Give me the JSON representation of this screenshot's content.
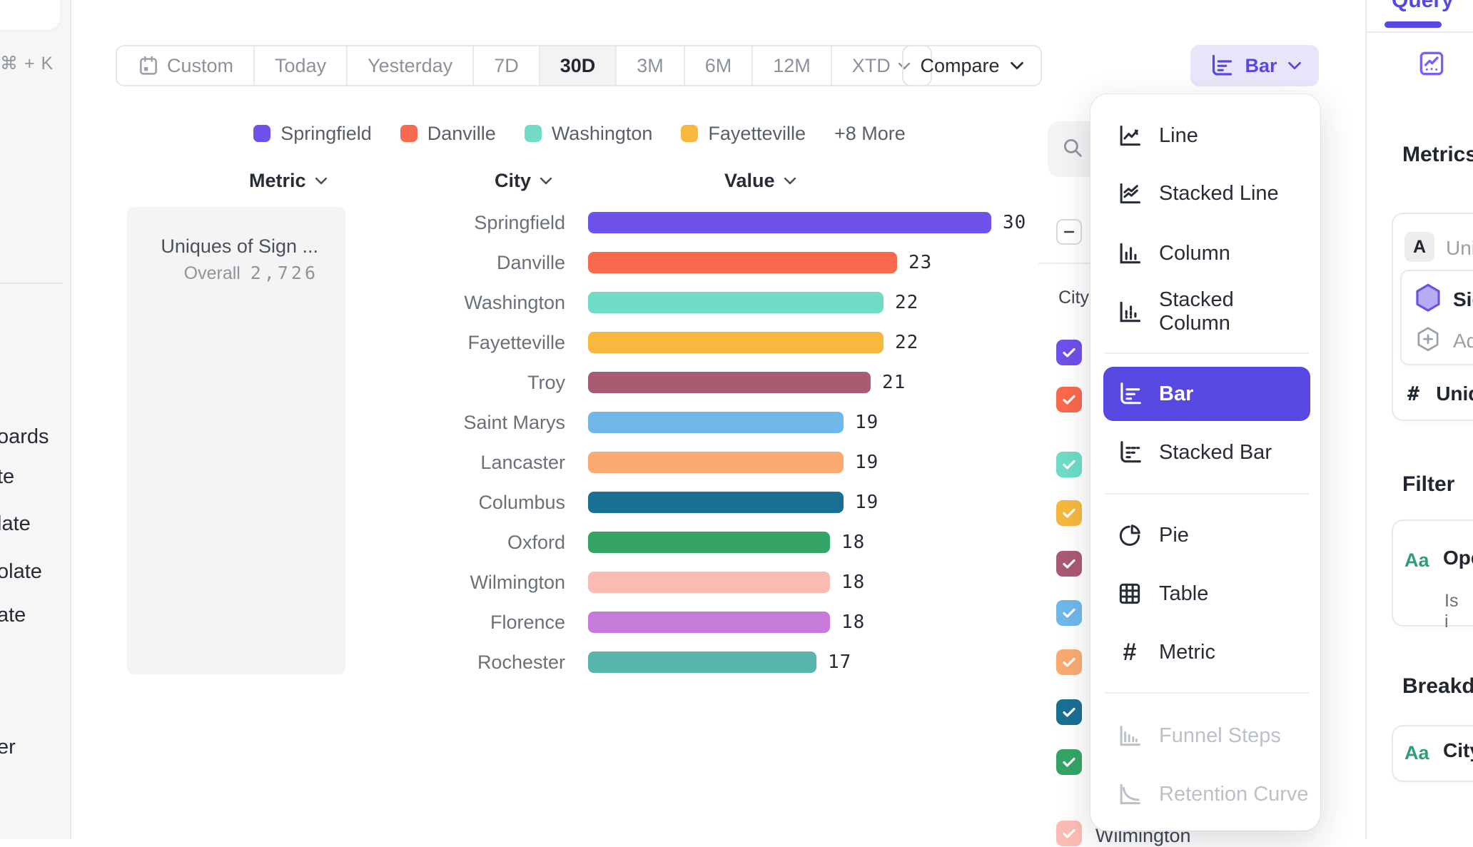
{
  "accent_color": "#5848e2",
  "sidebar": {
    "shortcut": "⌘ + K",
    "item_fragments": [
      "oards",
      "te",
      "late",
      "olate",
      "ate",
      "er"
    ]
  },
  "toolbar": {
    "date_ranges": [
      {
        "label": "Custom",
        "icon": "calendar-icon",
        "selected": false
      },
      {
        "label": "Today",
        "selected": false
      },
      {
        "label": "Yesterday",
        "selected": false
      },
      {
        "label": "7D",
        "selected": false
      },
      {
        "label": "30D",
        "selected": true
      },
      {
        "label": "3M",
        "selected": false
      },
      {
        "label": "6M",
        "selected": false
      },
      {
        "label": "12M",
        "selected": false
      },
      {
        "label": "XTD",
        "chevron": true,
        "selected": false
      }
    ],
    "compare_label": "Compare",
    "chart_type_button_label": "Bar"
  },
  "legend": {
    "items": [
      {
        "label": "Springfield",
        "color": "#6e51e8"
      },
      {
        "label": "Danville",
        "color": "#f9694d"
      },
      {
        "label": "Washington",
        "color": "#70dcc8"
      },
      {
        "label": "Fayetteville",
        "color": "#f6b93e"
      }
    ],
    "more_label": "+8 More"
  },
  "table_headers": {
    "metric": "Metric",
    "city": "City",
    "value": "Value"
  },
  "metric_card": {
    "title": "Uniques of Sign ...",
    "overall_label": "Overall",
    "overall_value": "2,726"
  },
  "chart_data": {
    "type": "bar",
    "orientation": "horizontal",
    "title": "Uniques of Sign ...",
    "overall_total": 2726,
    "categories": [
      "Springfield",
      "Danville",
      "Washington",
      "Fayetteville",
      "Troy",
      "Saint Marys",
      "Lancaster",
      "Columbus",
      "Oxford",
      "Wilmington",
      "Florence",
      "Rochester"
    ],
    "values": [
      30,
      23,
      22,
      22,
      21,
      19,
      19,
      19,
      18,
      18,
      18,
      17
    ],
    "colors": [
      "#6e51e8",
      "#f9694d",
      "#70dcc8",
      "#f6b93e",
      "#aa5a71",
      "#70b8ea",
      "#fbab71",
      "#1a7093",
      "#34a567",
      "#fbbcb4",
      "#c77bda",
      "#57b5ab"
    ],
    "xlim": [
      0,
      30
    ],
    "value_labels_shown": true,
    "grid": false
  },
  "chart_type_menu": {
    "items": [
      {
        "label": "Line",
        "icon": "line-chart-icon"
      },
      {
        "label": "Stacked Line",
        "icon": "stacked-line-chart-icon"
      },
      {
        "label": "Column",
        "icon": "column-chart-icon"
      },
      {
        "label": "Stacked Column",
        "icon": "stacked-column-chart-icon"
      },
      {
        "divider": true
      },
      {
        "label": "Bar",
        "icon": "bar-chart-icon",
        "selected": true
      },
      {
        "label": "Stacked Bar",
        "icon": "stacked-bar-chart-icon"
      },
      {
        "divider": true
      },
      {
        "label": "Pie",
        "icon": "pie-chart-icon"
      },
      {
        "label": "Table",
        "icon": "table-icon"
      },
      {
        "label": "Metric",
        "icon": "hash-icon"
      },
      {
        "divider": true
      },
      {
        "label": "Funnel Steps",
        "icon": "funnel-steps-icon",
        "disabled": true
      },
      {
        "label": "Retention Curve",
        "icon": "retention-curve-icon",
        "disabled": true
      }
    ]
  },
  "breakdown_list": {
    "group_label": "City",
    "checkbox_colors": [
      "#6e51e8",
      "#f9694d",
      "#70dcc8",
      "#f6b93e",
      "#aa5a71",
      "#70b8ea",
      "#fbab71",
      "#1a7093",
      "#34a567",
      "#fbbcb4"
    ],
    "partial_row_label": "Wilmington"
  },
  "query_panel": {
    "tab_label": "Query",
    "metrics_heading": "Metrics",
    "metric_letter_badge": "A",
    "metric_name_fragment": "Uniqu",
    "event_fragment": "Sig",
    "add_fragment": "Ad",
    "measure_hash": "#",
    "measure_fragment": "Uniqu",
    "filter_heading": "Filter",
    "filter_property_fragment": "Ope",
    "filter_operator_fragment": "Is",
    "filter_value_fragment": "i",
    "breakdown_heading": "Breakdown",
    "breakdown_property": "City"
  }
}
